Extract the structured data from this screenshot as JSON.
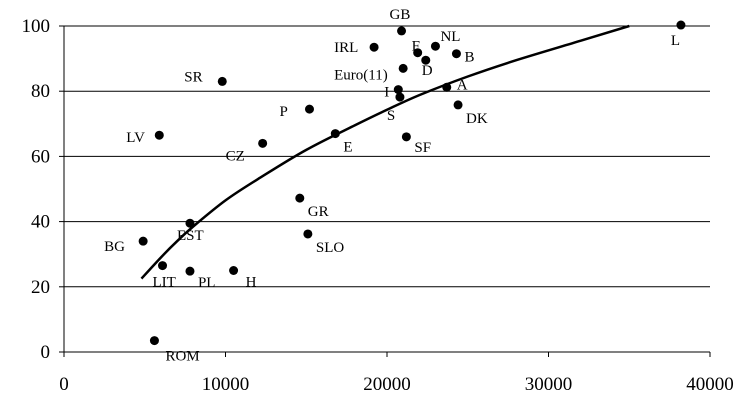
{
  "chart_data": {
    "type": "scatter",
    "title": "",
    "xlabel": "",
    "ylabel": "",
    "xlim": [
      0,
      40000
    ],
    "ylim": [
      0,
      100
    ],
    "x_ticks": [
      "0",
      "10000",
      "20000",
      "30000",
      "40000"
    ],
    "y_ticks": [
      "0",
      "20",
      "40",
      "60",
      "80",
      "100"
    ],
    "grid": "horizontal",
    "legend": "none",
    "colors": {
      "marker": "#000000",
      "curve": "#000000",
      "grid": "#000000"
    },
    "points": [
      {
        "label": "L",
        "x": 38200,
        "y": 100.3
      },
      {
        "label": "GB",
        "x": 20900,
        "y": 98.5
      },
      {
        "label": "IRL",
        "x": 19200,
        "y": 93.5
      },
      {
        "label": "F",
        "x": 21900,
        "y": 91.8
      },
      {
        "label": "NL",
        "x": 23000,
        "y": 93.8
      },
      {
        "label": "B",
        "x": 24300,
        "y": 91.5
      },
      {
        "label": "Euro(11)",
        "x": 21000,
        "y": 87.0
      },
      {
        "label": "D",
        "x": 22400,
        "y": 89.5
      },
      {
        "label": "I",
        "x": 20700,
        "y": 80.5
      },
      {
        "label": "A",
        "x": 23700,
        "y": 81.2
      },
      {
        "label": "S",
        "x": 20800,
        "y": 78.2
      },
      {
        "label": "DK",
        "x": 24400,
        "y": 75.8
      },
      {
        "label": "SR",
        "x": 9800,
        "y": 83.0
      },
      {
        "label": "P",
        "x": 15200,
        "y": 74.5
      },
      {
        "label": "LV",
        "x": 5900,
        "y": 66.5
      },
      {
        "label": "CZ",
        "x": 12300,
        "y": 64.0
      },
      {
        "label": "E",
        "x": 16800,
        "y": 67.0
      },
      {
        "label": "SF",
        "x": 21200,
        "y": 66.0
      },
      {
        "label": "GR",
        "x": 14600,
        "y": 47.2
      },
      {
        "label": "SLO",
        "x": 15100,
        "y": 36.2
      },
      {
        "label": "EST",
        "x": 7800,
        "y": 39.5
      },
      {
        "label": "BG",
        "x": 4900,
        "y": 34.0
      },
      {
        "label": "LIT",
        "x": 6100,
        "y": 26.5
      },
      {
        "label": "PL",
        "x": 7800,
        "y": 24.8
      },
      {
        "label": "H",
        "x": 10500,
        "y": 25.0
      },
      {
        "label": "ROM",
        "x": 5600,
        "y": 3.5
      }
    ],
    "trendline": {
      "type": "power",
      "x_range": [
        4800,
        35000
      ],
      "samples": [
        {
          "x": 4800,
          "y": 22.5
        },
        {
          "x": 6000,
          "y": 29.0
        },
        {
          "x": 7000,
          "y": 34.0
        },
        {
          "x": 8000,
          "y": 38.5
        },
        {
          "x": 10000,
          "y": 46.5
        },
        {
          "x": 12000,
          "y": 53.0
        },
        {
          "x": 15000,
          "y": 62.0
        },
        {
          "x": 18000,
          "y": 69.5
        },
        {
          "x": 20000,
          "y": 74.3
        },
        {
          "x": 22000,
          "y": 78.8
        },
        {
          "x": 25000,
          "y": 84.5
        },
        {
          "x": 28000,
          "y": 89.5
        },
        {
          "x": 32000,
          "y": 95.5
        },
        {
          "x": 35000,
          "y": 100.0
        }
      ]
    }
  }
}
